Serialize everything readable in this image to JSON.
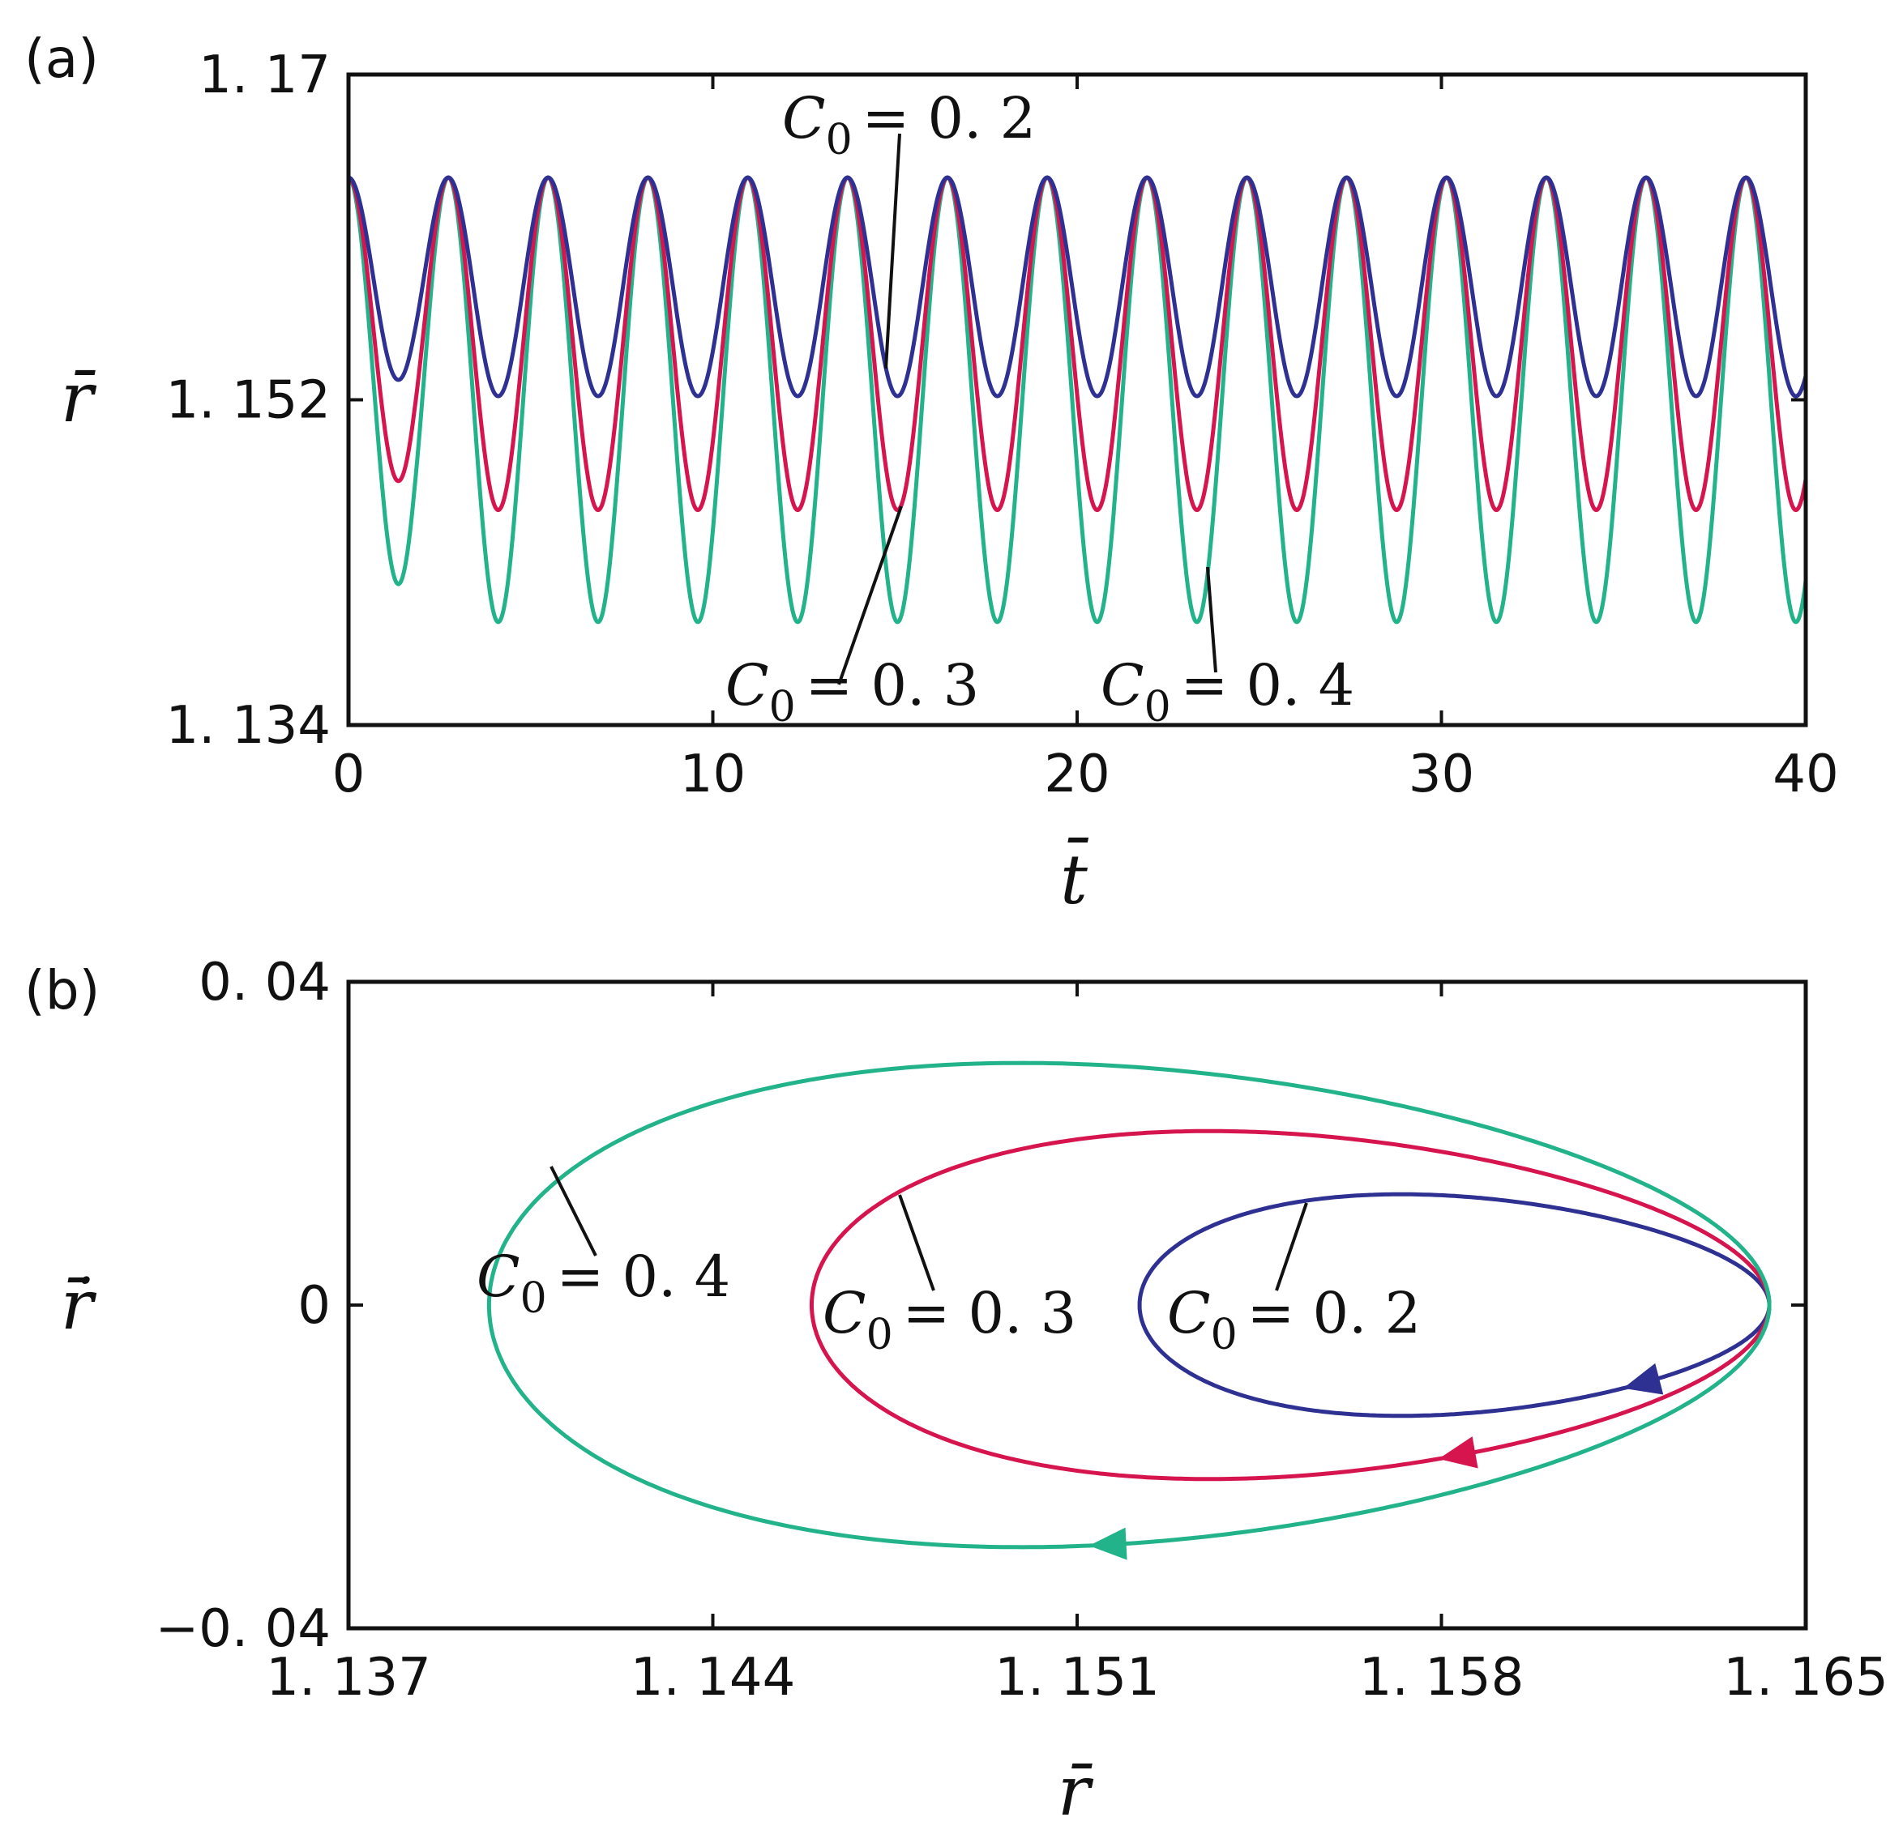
{
  "chart_data": [
    {
      "panel_label": "(a)",
      "type": "line",
      "xlabel": "t̄",
      "ylabel": "r̄",
      "xlim": [
        0,
        40
      ],
      "ylim": [
        1.134,
        1.17
      ],
      "xticks": [
        "0",
        "10",
        "20",
        "30",
        "40"
      ],
      "yticks": [
        "1. 134",
        "1. 152",
        "1. 17"
      ],
      "grid": false,
      "series": [
        {
          "name": "C₀ = 0. 2",
          "color": "#2e3192",
          "period": 2.74,
          "max": 1.1643,
          "min": 1.1522,
          "first_min": 1.1531,
          "first_min_t": 1.8
        },
        {
          "name": "C₀ = 0. 3",
          "color": "#d6154e",
          "period": 2.74,
          "max": 1.1643,
          "min": 1.1459,
          "first_min": 1.1475,
          "first_min_t": 1.8
        },
        {
          "name": "C₀ = 0. 4",
          "color": "#22b38b",
          "period": 2.74,
          "max": 1.1643,
          "min": 1.1397,
          "first_min": 1.1418,
          "first_min_t": 1.8
        }
      ],
      "annotations": [
        {
          "c": "C",
          "sub": "0",
          "text": "= 0. 2"
        },
        {
          "c": "C",
          "sub": "0",
          "text": "= 0. 3"
        },
        {
          "c": "C",
          "sub": "0",
          "text": "= 0. 4"
        }
      ]
    },
    {
      "panel_label": "(b)",
      "type": "line",
      "xlabel": "r̄",
      "ylabel": "ṙ̄",
      "xlim": [
        1.137,
        1.165
      ],
      "ylim": [
        -0.04,
        0.04
      ],
      "xticks": [
        "1. 137",
        "1. 144",
        "1. 151",
        "1. 158",
        "1. 165"
      ],
      "yticks": [
        "−0. 04",
        "0",
        "0. 04"
      ],
      "grid": false,
      "series": [
        {
          "name": "C₀ = 0. 2",
          "color": "#2e3192",
          "r_min": 1.1522,
          "r_max": 1.1643,
          "v_max": 0.0135,
          "v_min": -0.0135
        },
        {
          "name": "C₀ = 0. 3",
          "color": "#d6154e",
          "r_min": 1.1459,
          "r_max": 1.1643,
          "v_max": 0.0212,
          "v_min": -0.0212
        },
        {
          "name": "C₀ = 0. 4",
          "color": "#22b38b",
          "r_min": 1.1397,
          "r_max": 1.1643,
          "v_max": 0.0295,
          "v_min": -0.0295
        }
      ],
      "annotations": [
        {
          "c": "C",
          "sub": "0",
          "text": "= 0. 4"
        },
        {
          "c": "C",
          "sub": "0",
          "text": "= 0. 3"
        },
        {
          "c": "C",
          "sub": "0",
          "text": "= 0. 2"
        }
      ]
    }
  ]
}
